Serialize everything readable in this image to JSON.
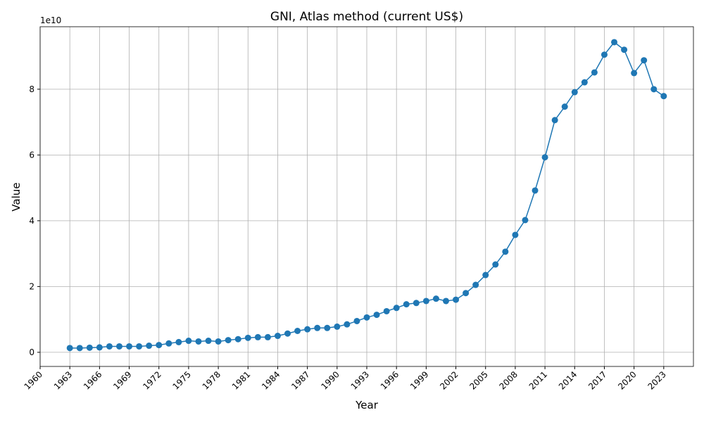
{
  "chart_data": {
    "type": "line",
    "title": "GNI, Atlas method (current US$)",
    "x_label": "Year",
    "y_label": "Value",
    "y_offset_label": "1e10",
    "x": [
      1963,
      1964,
      1965,
      1966,
      1967,
      1968,
      1969,
      1970,
      1971,
      1972,
      1973,
      1974,
      1975,
      1976,
      1977,
      1978,
      1979,
      1980,
      1981,
      1982,
      1983,
      1984,
      1985,
      1986,
      1987,
      1988,
      1989,
      1990,
      1991,
      1992,
      1993,
      1994,
      1995,
      1996,
      1997,
      1998,
      1999,
      2000,
      2001,
      2002,
      2003,
      2004,
      2005,
      2006,
      2007,
      2008,
      2009,
      2010,
      2011,
      2012,
      2013,
      2014,
      2015,
      2016,
      2017,
      2018,
      2019,
      2020,
      2021,
      2022,
      2023
    ],
    "series": [
      {
        "name": "GNI",
        "color": "#1f77b4",
        "values": [
          0.13,
          0.13,
          0.14,
          0.15,
          0.18,
          0.18,
          0.18,
          0.18,
          0.2,
          0.22,
          0.27,
          0.31,
          0.35,
          0.33,
          0.35,
          0.33,
          0.37,
          0.4,
          0.44,
          0.46,
          0.46,
          0.5,
          0.57,
          0.65,
          0.7,
          0.74,
          0.74,
          0.78,
          0.85,
          0.95,
          1.06,
          1.14,
          1.25,
          1.35,
          1.46,
          1.5,
          1.56,
          1.63,
          1.56,
          1.6,
          1.8,
          2.05,
          2.35,
          2.67,
          3.06,
          3.57,
          4.02,
          4.92,
          5.93,
          7.06,
          7.47,
          7.91,
          8.21,
          8.51,
          9.05,
          9.43,
          9.2,
          8.49,
          8.88,
          8.0,
          7.79
        ]
      }
    ],
    "xlim": [
      1960,
      2026
    ],
    "xticks": [
      1960,
      1963,
      1966,
      1969,
      1972,
      1975,
      1978,
      1981,
      1984,
      1987,
      1990,
      1993,
      1996,
      1999,
      2002,
      2005,
      2008,
      2011,
      2014,
      2017,
      2020,
      2023
    ],
    "ylim": [
      -0.43,
      9.9
    ],
    "yticks": [
      0,
      2,
      4,
      6,
      8
    ],
    "grid": true
  }
}
